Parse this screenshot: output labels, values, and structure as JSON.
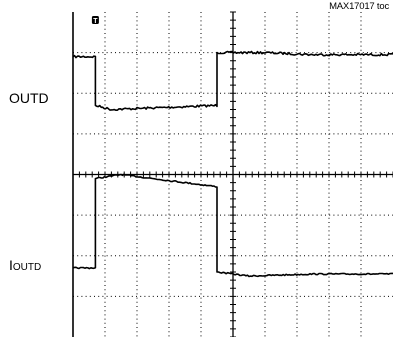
{
  "figure_id": "MAX17017 toc",
  "trigger_marker": "T",
  "labels": {
    "outd": "OUTD",
    "ioutd_main": "I",
    "ioutd_sub": "OUTD"
  },
  "colors": {
    "trace": "#000000",
    "grid": "#000000",
    "background": "#ffffff"
  },
  "chart_data": {
    "type": "line",
    "grid": true,
    "divisions": {
      "x": 10,
      "y": 8
    },
    "series": [
      {
        "name": "OUTD",
        "x": [
          0,
          0.7,
          0.7,
          1.2,
          4.5,
          4.5,
          6.0,
          7.5,
          9.5,
          10
        ],
        "y": [
          6.9,
          6.9,
          5.7,
          5.6,
          5.7,
          7.0,
          7.0,
          6.95,
          6.95,
          6.95
        ]
      },
      {
        "name": "IOUTD",
        "x": [
          0,
          0.7,
          0.7,
          1.5,
          4.5,
          4.5,
          5.5,
          7.5,
          10
        ],
        "y": [
          1.7,
          1.7,
          3.9,
          4.0,
          3.7,
          1.6,
          1.5,
          1.55,
          1.55
        ]
      }
    ]
  }
}
